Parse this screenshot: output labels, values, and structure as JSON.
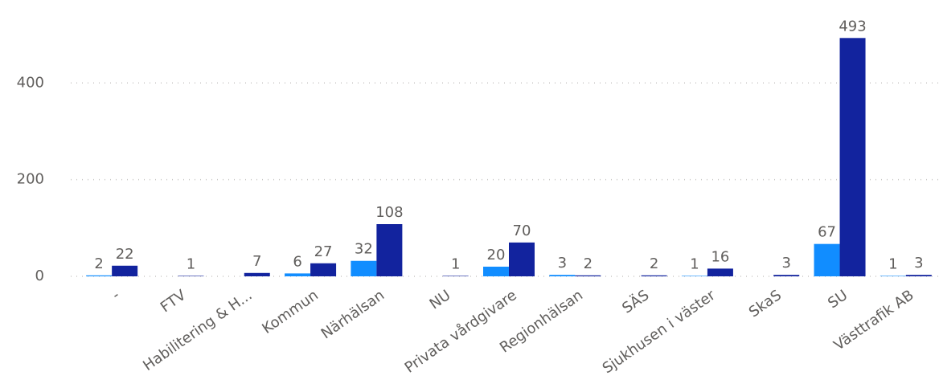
{
  "chart_data": {
    "type": "bar",
    "categories": [
      "-",
      "FTV",
      "Habilitering & H...",
      "Kommun",
      "Närhälsan",
      "NU",
      "Privata vårdgivare",
      "Regionhälsan",
      "SÄS",
      "Sjukhusen i väster",
      "SkaS",
      "SU",
      "Västtrafik AB"
    ],
    "series": [
      {
        "color": "#118dff",
        "values": [
          2,
          null,
          null,
          6,
          32,
          null,
          20,
          3,
          null,
          1,
          null,
          67,
          1
        ]
      },
      {
        "color": "#12239e",
        "values": [
          22,
          1,
          7,
          27,
          108,
          1,
          70,
          2,
          2,
          16,
          3,
          493,
          3
        ]
      }
    ],
    "ylim": [
      0,
      550
    ],
    "yticks": [
      0,
      200,
      400
    ],
    "grid": true
  }
}
